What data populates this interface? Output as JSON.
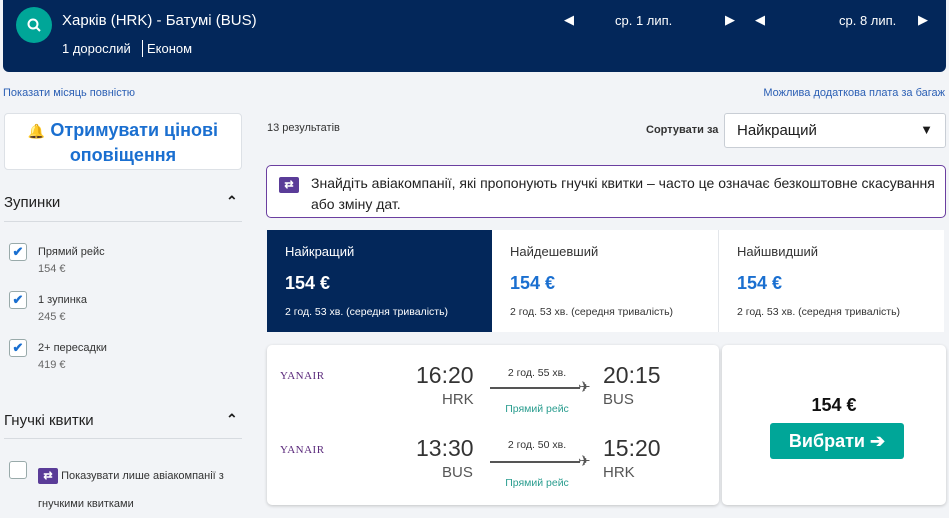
{
  "header": {
    "route": "Харків (HRK) - Батумі (BUS)",
    "passengers": "1 дорослий",
    "cabin": "Економ",
    "depart_date": "ср. 1 лип.",
    "return_date": "ср. 8 лип."
  },
  "links": {
    "show_month": "Показати місяць повністю",
    "baggage": "Можлива додаткова плата за багаж"
  },
  "sidebar": {
    "alert_button": "Отримувати цінові оповіщення",
    "stops_title": "Зупинки",
    "stops": [
      {
        "label": "Прямий рейс",
        "price": "154 €",
        "checked": true
      },
      {
        "label": "1 зупинка",
        "price": "245 €",
        "checked": true
      },
      {
        "label": "2+ пересадки",
        "price": "419 €",
        "checked": true
      }
    ],
    "flex_title": "Гнучкі квитки",
    "flex_option": "Показувати лише авіакомпанії з гнучкими квитками"
  },
  "results": {
    "count": "13 результатів",
    "sort_label": "Сортувати за",
    "sort_value": "Найкращий",
    "banner": "Знайдіть авіакомпанії, які пропонують гнучкі квитки – часто це означає безкоштовне скасування або зміну дат.",
    "tabs": [
      {
        "label": "Найкращий",
        "price": "154 €",
        "duration": "2 год. 53 хв. (середня тривалість)",
        "active": true
      },
      {
        "label": "Найдешевший",
        "price": "154 €",
        "duration": "2 год. 53 хв. (середня тривалість)"
      },
      {
        "label": "Найшвидший",
        "price": "154 €",
        "duration": "2 год. 53 хв. (середня тривалість)"
      }
    ],
    "flight": {
      "legs": [
        {
          "airline": "YANAIR",
          "dep_time": "16:20",
          "dep_airport": "HRK",
          "duration": "2 год. 55 хв.",
          "type": "Прямий рейс",
          "arr_time": "20:15",
          "arr_airport": "BUS"
        },
        {
          "airline": "YANAIR",
          "dep_time": "13:30",
          "dep_airport": "BUS",
          "duration": "2 год. 50 хв.",
          "type": "Прямий рейс",
          "arr_time": "15:20",
          "arr_airport": "HRK"
        }
      ],
      "price": "154 €",
      "select_button": "Вибрати ➔"
    }
  },
  "colors": {
    "navy": "#03275a",
    "teal": "#00a698",
    "link": "#1a6fd0",
    "flex": "#5a3c98"
  }
}
